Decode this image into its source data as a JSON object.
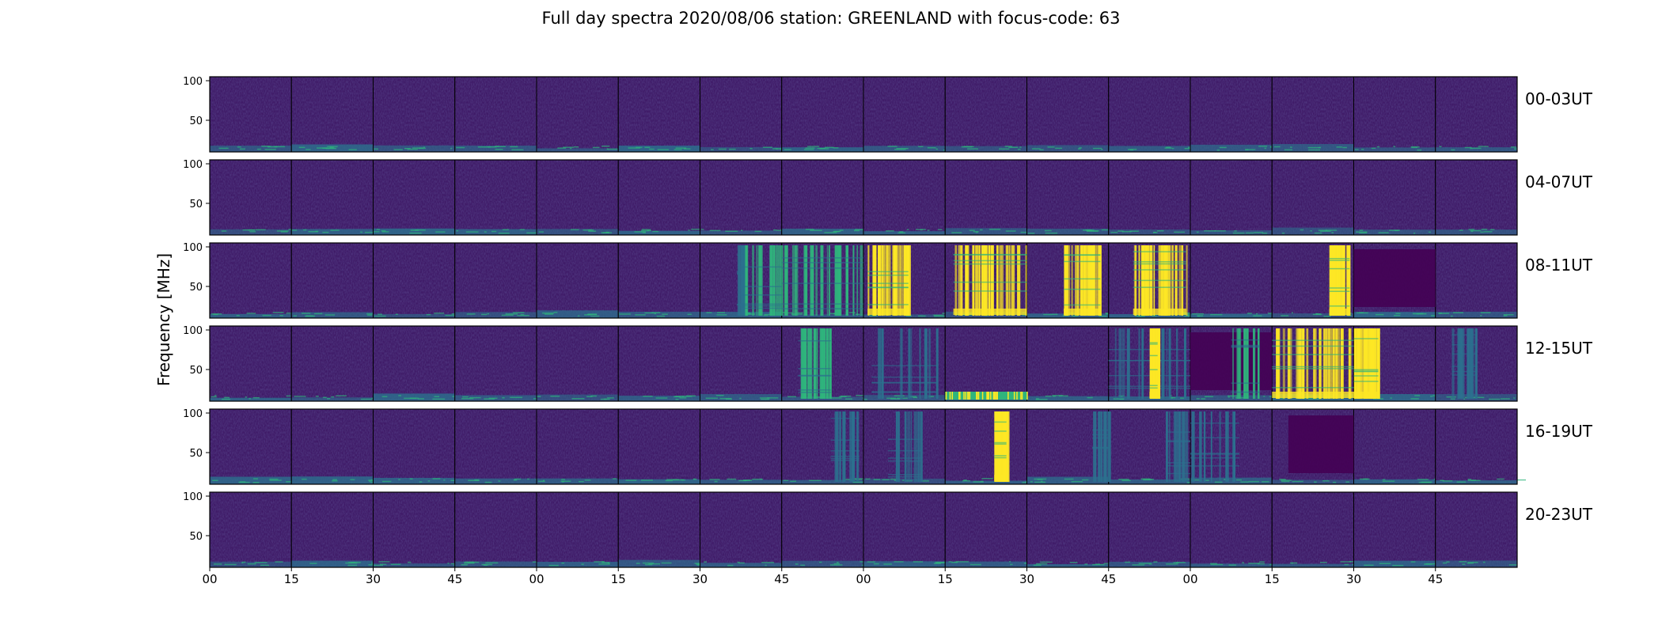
{
  "chart_data": {
    "type": "heatmap",
    "title": "Full day spectra 2020/08/06 station: GREENLAND with focus-code: 63",
    "ylabel": "Frequency [MHz]",
    "xlabel": "",
    "ylim": [
      10,
      105
    ],
    "yticks": [
      50,
      100
    ],
    "xticks": [
      "00",
      "15",
      "30",
      "45",
      "00",
      "15",
      "30",
      "45",
      "00",
      "15",
      "30",
      "45",
      "00",
      "15",
      "30",
      "45"
    ],
    "colormap": "viridis",
    "panels_per_row": 16,
    "rows": [
      {
        "label": "00-03UT"
      },
      {
        "label": "04-07UT"
      },
      {
        "label": "08-11UT"
      },
      {
        "label": "12-15UT"
      },
      {
        "label": "16-19UT"
      },
      {
        "label": "20-23UT"
      }
    ],
    "colors": {
      "background_low": "#3f1a67",
      "mid": "#2c708e",
      "green": "#2fb47c",
      "high": "#fde725",
      "dark": "#440154"
    }
  }
}
